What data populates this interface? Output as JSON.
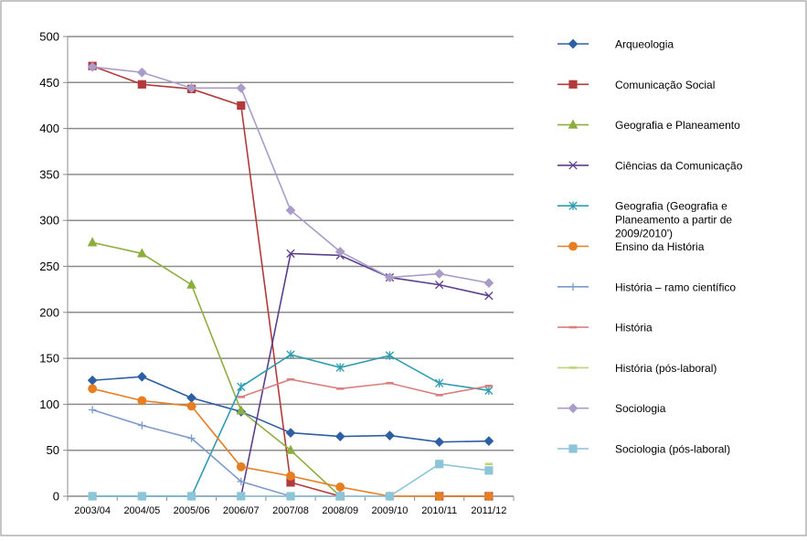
{
  "chart_data": {
    "type": "line",
    "title": "",
    "xlabel": "",
    "ylabel": "",
    "ylim": [
      0,
      500
    ],
    "y_ticks": [
      0,
      50,
      100,
      150,
      200,
      250,
      300,
      350,
      400,
      450,
      500
    ],
    "grid": true,
    "legend_position": "right",
    "categories": [
      "2003/04",
      "2004/05",
      "2005/06",
      "2006/07",
      "2007/08",
      "2008/09",
      "2009/10",
      "2010/11",
      "2011/12"
    ],
    "series": [
      {
        "name": "Arqueologia",
        "color": "#2E5FA3",
        "marker": "diamond",
        "values": [
          126,
          130,
          107,
          92,
          69,
          65,
          66,
          59,
          60
        ]
      },
      {
        "name": "Comunicação Social",
        "color": "#B33A3A",
        "marker": "square",
        "values": [
          468,
          448,
          443,
          425,
          15,
          0,
          null,
          0,
          0
        ]
      },
      {
        "name": "Geografia e Planeamento",
        "color": "#8DAE3F",
        "marker": "triangle",
        "values": [
          276,
          264,
          230,
          93,
          50,
          0,
          null,
          null,
          null
        ]
      },
      {
        "name": "Ciências da Comunicação",
        "color": "#5B3F8C",
        "marker": "x",
        "values": [
          0,
          0,
          0,
          0,
          264,
          262,
          238,
          230,
          218
        ]
      },
      {
        "name": "Geografia (Geografia e Planeamento a partir de 2009/2010')",
        "color": "#2E9CB0",
        "marker": "asterisk",
        "values": [
          0,
          0,
          0,
          119,
          154,
          140,
          153,
          123,
          115
        ]
      },
      {
        "name": "Ensino da História",
        "color": "#E67E22",
        "marker": "circle",
        "values": [
          117,
          104,
          98,
          32,
          22,
          10,
          0,
          0,
          0
        ]
      },
      {
        "name": "História – ramo científico",
        "color": "#7D9ACD",
        "marker": "plus",
        "values": [
          94,
          77,
          63,
          16,
          0,
          0,
          null,
          null,
          null
        ]
      },
      {
        "name": "História",
        "color": "#D9807E",
        "marker": "dash",
        "values": [
          null,
          null,
          null,
          108,
          127,
          117,
          123,
          110,
          120
        ]
      },
      {
        "name": "História (pós-laboral)",
        "color": "#BBD57A",
        "marker": "dash",
        "values": [
          null,
          null,
          null,
          null,
          null,
          null,
          null,
          null,
          35
        ]
      },
      {
        "name": "Sociologia",
        "color": "#A99CC9",
        "marker": "diamond",
        "values": [
          467,
          461,
          444,
          444,
          311,
          266,
          238,
          242,
          232
        ]
      },
      {
        "name": "Sociologia (pós-laboral)",
        "color": "#8CC4D8",
        "marker": "square",
        "values": [
          0,
          0,
          0,
          0,
          0,
          0,
          0,
          35,
          28
        ]
      }
    ]
  }
}
